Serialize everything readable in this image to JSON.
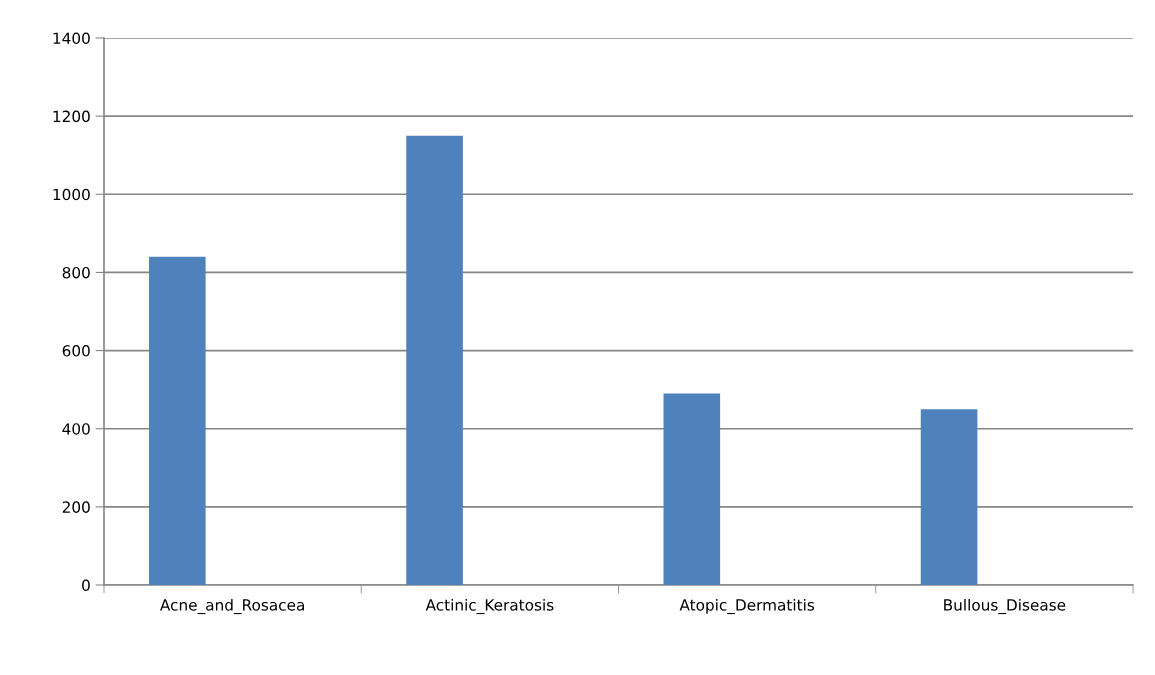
{
  "chart_data": {
    "type": "bar",
    "categories": [
      "Acne_and_Rosacea",
      "Actinic_Keratosis",
      "Atopic_Dermatitis",
      "Bullous_Disease"
    ],
    "series": [
      {
        "color": "#4f81bd",
        "values": [
          840,
          1150,
          490,
          450
        ]
      },
      {
        "color": "#c0504d",
        "values": [
          null,
          null,
          null,
          null
        ]
      }
    ],
    "ylim": [
      0,
      1400
    ],
    "yticks": [
      0,
      200,
      400,
      600,
      800,
      1000,
      1200,
      1400
    ],
    "grid": "y"
  }
}
